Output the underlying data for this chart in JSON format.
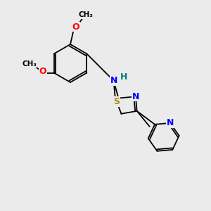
{
  "background_color": "#ebebeb",
  "bond_color": "#000000",
  "atom_colors": {
    "N": "#0000ff",
    "S": "#b8860b",
    "O": "#ff0000",
    "H": "#008080",
    "C": "#000000"
  },
  "font_size_atoms": 9,
  "font_size_small": 7.5,
  "lw": 1.3
}
